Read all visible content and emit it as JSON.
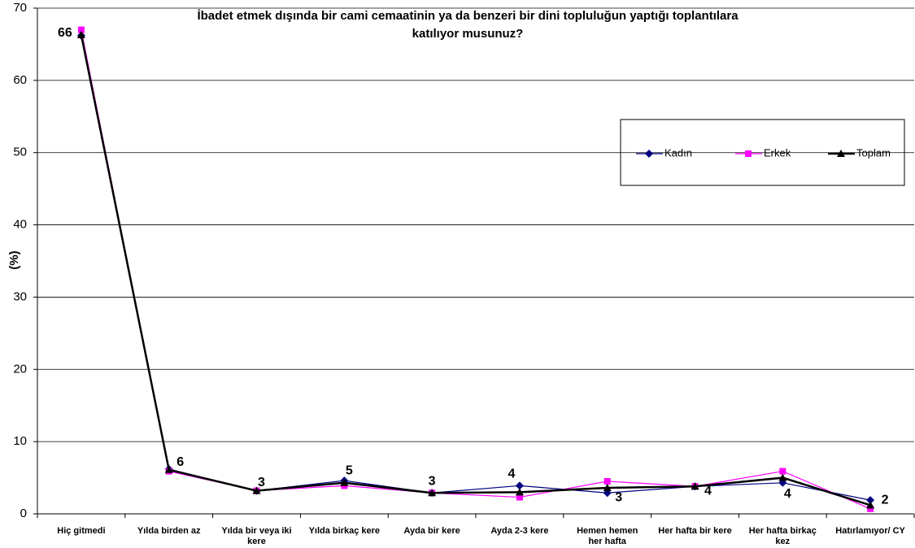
{
  "chart_data": {
    "type": "line",
    "title": [
      "İbadet etmek dışında bir cami cemaatinin ya da benzeri bir dini topluluğun yaptığı toplantılara",
      "katılıyor musunuz?"
    ],
    "y_label": "(%)",
    "categories": [
      "Hiç gitmedi",
      "Yılda birden az",
      "Yılda bir veya iki kere",
      "Yılda birkaç kere",
      "Ayda bir kere",
      "Ayda 2-3 kere",
      "Hemen hemen her hafta",
      "Her hafta bir kere",
      "Her hafta birkaç kez",
      "Hatırlamıyor/ CY"
    ],
    "series": [
      {
        "name": "Kadın",
        "color": "#000080",
        "marker": "diamond",
        "values": [
          66.2,
          6.2,
          3.2,
          4.6,
          2.9,
          3.9,
          2.9,
          3.8,
          4.3,
          1.9
        ],
        "value_labels": [
          "66",
          "6",
          "3",
          "5",
          "3",
          "4",
          "3",
          "4",
          "4",
          "2"
        ]
      },
      {
        "name": "Erkek",
        "color": "#ff00ff",
        "marker": "square",
        "values": [
          67.0,
          5.9,
          3.2,
          3.9,
          2.9,
          2.3,
          4.5,
          3.8,
          5.9,
          0.7
        ]
      },
      {
        "name": "Toplam",
        "color": "#000000",
        "marker": "triangle",
        "values": [
          66.3,
          6.1,
          3.2,
          4.3,
          2.9,
          3.0,
          3.6,
          3.8,
          5.0,
          1.2
        ]
      }
    ],
    "ylim": [
      0,
      70
    ],
    "yticks": [
      0,
      10,
      20,
      30,
      40,
      50,
      60,
      70
    ],
    "grid": true,
    "legend": "right"
  }
}
